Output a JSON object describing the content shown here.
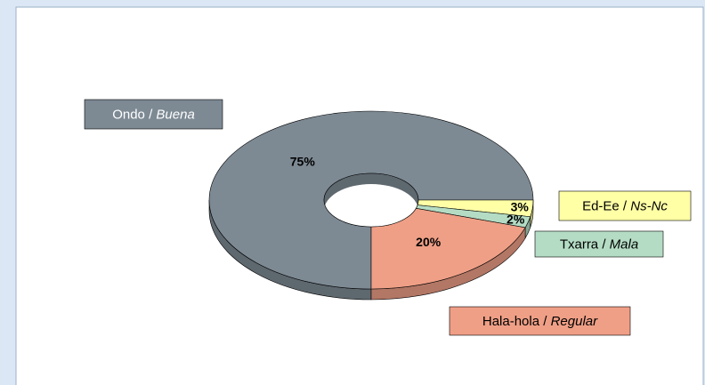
{
  "chart_data": {
    "type": "donut3d",
    "categories": [
      "Ondo / Buena",
      "Ed-Ee / Ns-Nc",
      "Txarra / Mala",
      "Hala-hola / Regular"
    ],
    "values": [
      75,
      3,
      2,
      20
    ],
    "value_labels": [
      "75%",
      "3%",
      "2%",
      "20%"
    ],
    "colors": [
      "#7d8a94",
      "#ffffa6",
      "#b4dcc4",
      "#ef9f86"
    ]
  }
}
